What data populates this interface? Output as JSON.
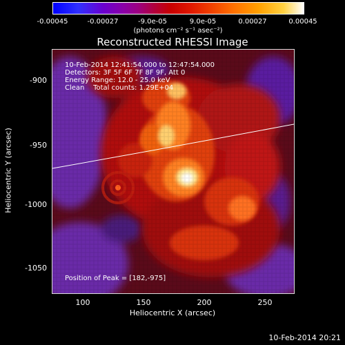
{
  "colorbar": {
    "ticks": [
      "-0.00045",
      "-0.00027",
      "-9.0e-05",
      "9.0e-05",
      "0.00027",
      "0.00045"
    ],
    "units": "(photons cm⁻² s⁻¹ asec⁻²)"
  },
  "title": "Reconstructed RHESSI Image",
  "info": {
    "line1": "10-Feb-2014 12:41:54.000 to 12:47:54.000",
    "line2": "Detectors: 3F 5F 6F 7F 8F 9F, Att 0",
    "line3": "Energy Range: 12.0 - 25.0 keV",
    "line4": "Clean    Total counts: 1.29E+04"
  },
  "peak_text": "Position of Peak = [182,-975]",
  "axes": {
    "xlabel": "Heliocentric X (arcsec)",
    "ylabel": "Heliocentric Y (arcsec)",
    "xticks": [
      "100",
      "150",
      "200",
      "250"
    ],
    "yticks": [
      "-900",
      "-950",
      "-1000",
      "-1050"
    ]
  },
  "footer": "10-Feb-2014 20:21"
}
